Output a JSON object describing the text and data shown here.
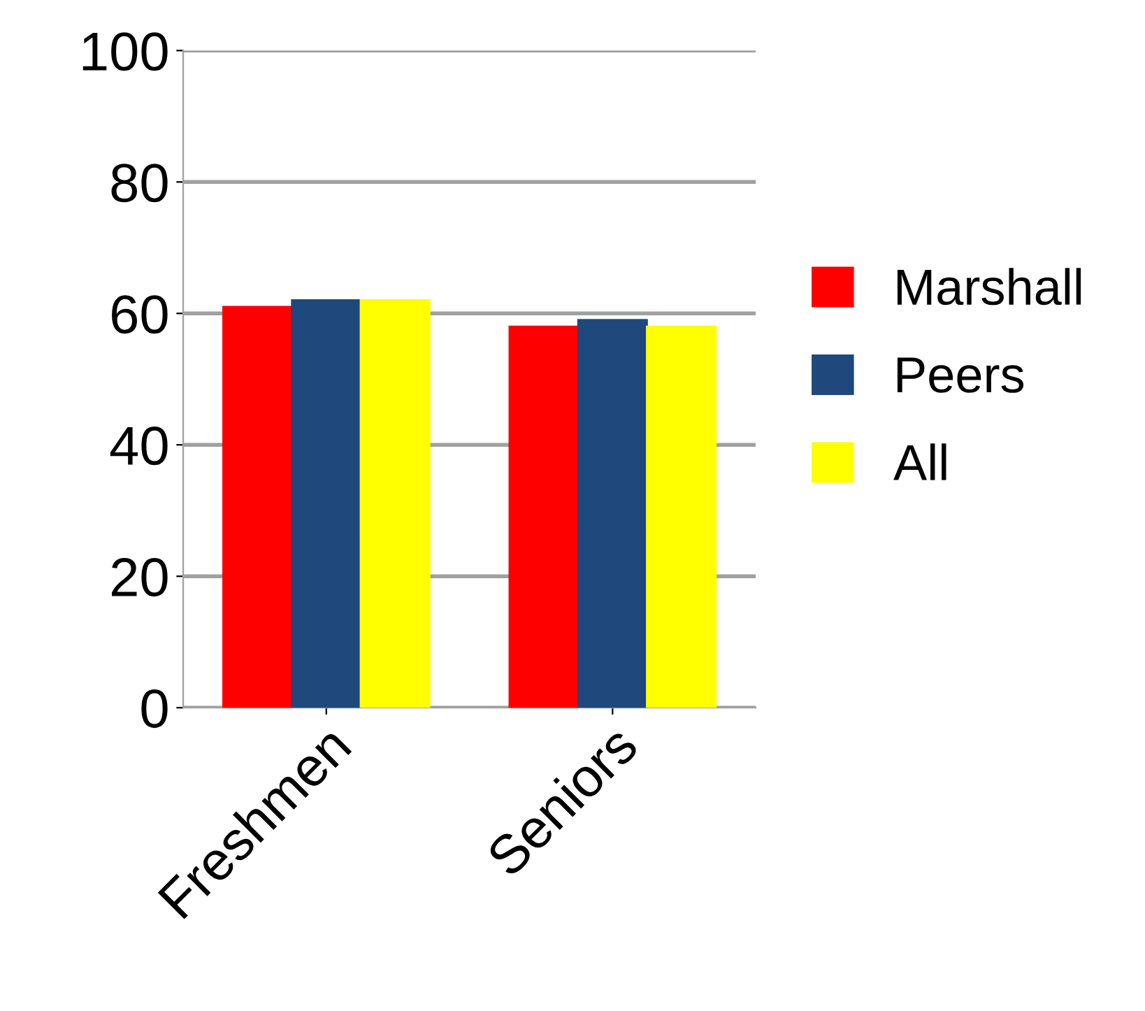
{
  "chart_data": {
    "type": "bar",
    "categories": [
      "Freshmen",
      "Seniors"
    ],
    "series": [
      {
        "name": "Marshall",
        "color": "#ff0000",
        "values": [
          61,
          58
        ]
      },
      {
        "name": "Peers",
        "color": "#1f497d",
        "values": [
          62,
          59
        ]
      },
      {
        "name": "All",
        "color": "#ffff00",
        "values": [
          62,
          58
        ]
      }
    ],
    "ylim": [
      0,
      100
    ],
    "yticks": [
      0,
      20,
      40,
      60,
      80,
      100
    ],
    "grid": "y",
    "legend": "right"
  }
}
